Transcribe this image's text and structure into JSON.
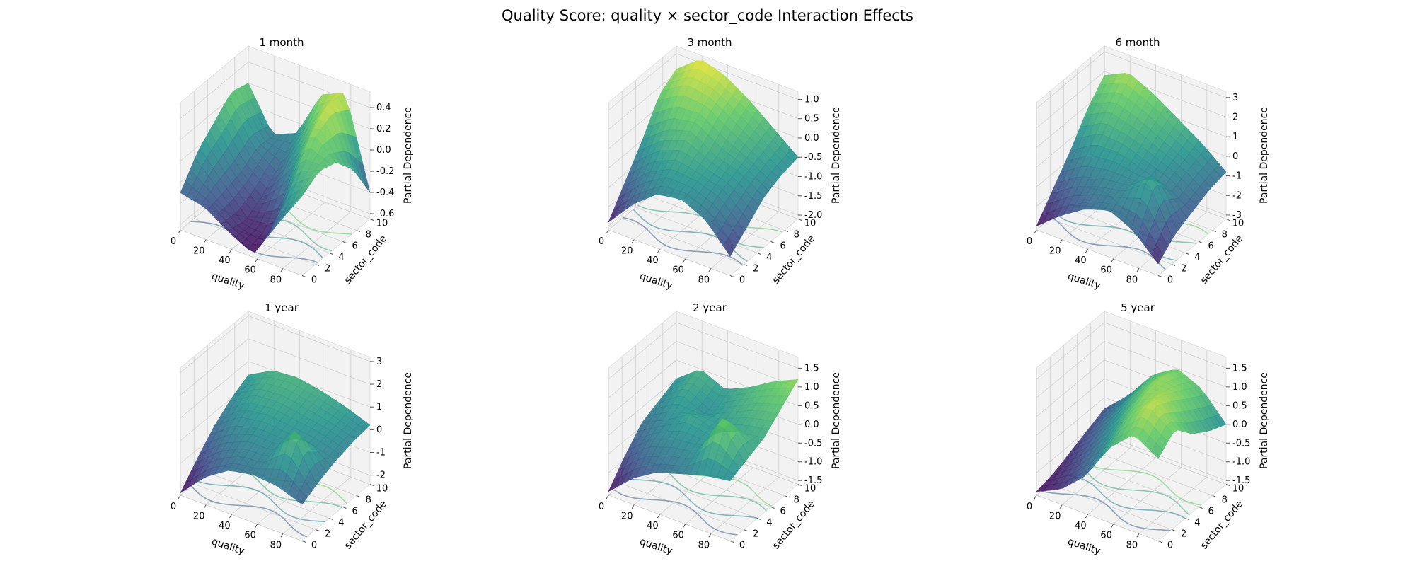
{
  "figure": {
    "title": "Quality Score: quality × sector_code Interaction Effects"
  },
  "chart_data": [
    {
      "type": "surface3d",
      "title": "1 month",
      "xlabel": "quality",
      "ylabel": "sector_code",
      "zlabel": "Partial Dependence",
      "xticks": [
        "0",
        "20",
        "40",
        "60",
        "80"
      ],
      "yticks": [
        "0",
        "2",
        "4",
        "6",
        "8",
        "10"
      ],
      "zticks": [
        "-0.6",
        "-0.4",
        "-0.2",
        "0.0",
        "0.2",
        "0.4"
      ],
      "xlim": [
        0,
        95
      ],
      "ylim": [
        0,
        10
      ],
      "zlim": [
        -0.65,
        0.55
      ],
      "grid": true,
      "colormap": "viridis",
      "contours_on_floor": true,
      "grid_x": [
        0,
        19,
        38,
        57,
        76,
        95
      ],
      "grid_y": [
        0,
        2.5,
        5,
        7.5,
        10
      ],
      "z": [
        [
          -0.3,
          -0.35,
          -0.5,
          -0.62,
          -0.25,
          0.1
        ],
        [
          -0.05,
          -0.3,
          -0.55,
          -0.55,
          0.05,
          0.2
        ],
        [
          0.1,
          -0.25,
          -0.45,
          -0.2,
          0.35,
          0.15
        ],
        [
          0.25,
          -0.15,
          -0.3,
          0.1,
          0.5,
          -0.05
        ],
        [
          0.2,
          -0.2,
          -0.1,
          0.35,
          0.45,
          -0.4
        ]
      ]
    },
    {
      "type": "surface3d",
      "title": "3 month",
      "xlabel": "quality",
      "ylabel": "sector_code",
      "zlabel": "Partial Dependence",
      "xticks": [
        "0",
        "20",
        "40",
        "60",
        "80"
      ],
      "yticks": [
        "0",
        "2",
        "4",
        "6",
        "8",
        "10"
      ],
      "zticks": [
        "-2.0",
        "-1.5",
        "-1.0",
        "-0.5",
        "0.0",
        "0.5",
        "1.0"
      ],
      "xlim": [
        0,
        95
      ],
      "ylim": [
        0,
        10
      ],
      "zlim": [
        -2.1,
        1.2
      ],
      "grid": true,
      "colormap": "viridis",
      "contours_on_floor": true,
      "grid_x": [
        0,
        19,
        38,
        57,
        76,
        95
      ],
      "grid_y": [
        0,
        2.5,
        5,
        7.5,
        10
      ],
      "z": [
        [
          -1.9,
          -1.2,
          -0.7,
          -0.6,
          -0.9,
          -1.6
        ],
        [
          -1.2,
          -0.6,
          -0.3,
          -0.4,
          -0.6,
          -1.2
        ],
        [
          -0.5,
          0.0,
          0.2,
          -0.2,
          -0.4,
          -0.8
        ],
        [
          0.3,
          0.7,
          0.6,
          0.2,
          -0.2,
          -0.6
        ],
        [
          0.6,
          1.1,
          0.9,
          0.5,
          0.0,
          -0.5
        ]
      ]
    },
    {
      "type": "surface3d",
      "title": "6 month",
      "xlabel": "quality",
      "ylabel": "sector_code",
      "zlabel": "Partial Dependence",
      "xticks": [
        "0",
        "20",
        "40",
        "60",
        "80"
      ],
      "yticks": [
        "0",
        "2",
        "4",
        "6",
        "8",
        "10"
      ],
      "zticks": [
        "-3",
        "-2",
        "-1",
        "0",
        "1",
        "2",
        "3"
      ],
      "xlim": [
        0,
        95
      ],
      "ylim": [
        0,
        10
      ],
      "zlim": [
        -3.2,
        3.3
      ],
      "grid": true,
      "colormap": "viridis",
      "contours_on_floor": true,
      "grid_x": [
        0,
        19,
        38,
        57,
        76,
        95
      ],
      "grid_y": [
        0,
        2.5,
        5,
        7.5,
        10
      ],
      "z": [
        [
          -3.0,
          -2.0,
          -1.2,
          -0.8,
          -1.4,
          -2.6
        ],
        [
          -1.8,
          -1.0,
          -0.6,
          -0.4,
          0.8,
          -1.8
        ],
        [
          -0.6,
          0.2,
          0.2,
          -0.2,
          -0.6,
          -1.4
        ],
        [
          0.8,
          1.4,
          1.0,
          0.4,
          -0.2,
          -1.0
        ],
        [
          1.8,
          2.4,
          1.8,
          1.0,
          0.2,
          -0.8
        ]
      ]
    },
    {
      "type": "surface3d",
      "title": "1 year",
      "xlabel": "quality",
      "ylabel": "sector_code",
      "zlabel": "Partial Dependence",
      "xticks": [
        "0",
        "20",
        "40",
        "60",
        "80"
      ],
      "yticks": [
        "0",
        "2",
        "4",
        "6",
        "8",
        "10"
      ],
      "zticks": [
        "-2",
        "-1",
        "0",
        "1",
        "2",
        "3"
      ],
      "xlim": [
        0,
        95
      ],
      "ylim": [
        0,
        10
      ],
      "zlim": [
        -2.4,
        3.2
      ],
      "grid": true,
      "colormap": "viridis",
      "contours_on_floor": true,
      "grid_x": [
        0,
        19,
        38,
        57,
        76,
        95
      ],
      "grid_y": [
        0,
        2.5,
        5,
        7.5,
        10
      ],
      "z": [
        [
          -2.3,
          -1.2,
          -0.5,
          -0.3,
          -0.4,
          -0.8
        ],
        [
          -1.4,
          -0.5,
          0.0,
          0.0,
          1.6,
          -0.4
        ],
        [
          -0.6,
          0.2,
          0.4,
          0.3,
          0.2,
          -0.1
        ],
        [
          0.0,
          0.7,
          0.8,
          0.6,
          0.4,
          0.1
        ],
        [
          0.4,
          1.0,
          1.1,
          0.9,
          0.6,
          0.2
        ]
      ]
    },
    {
      "type": "surface3d",
      "title": "2 year",
      "xlabel": "quality",
      "ylabel": "sector_code",
      "zlabel": "Partial Dependence",
      "xticks": [
        "0",
        "20",
        "40",
        "60",
        "80"
      ],
      "yticks": [
        "0",
        "2",
        "4",
        "6",
        "8",
        "10"
      ],
      "zticks": [
        "-1.5",
        "-1.0",
        "-0.5",
        "0.0",
        "0.5",
        "1.0",
        "1.5"
      ],
      "xlim": [
        0,
        95
      ],
      "ylim": [
        0,
        10
      ],
      "zlim": [
        -1.6,
        1.8
      ],
      "grid": true,
      "colormap": "viridis",
      "contours_on_floor": true,
      "grid_x": [
        0,
        19,
        38,
        57,
        76,
        95
      ],
      "grid_y": [
        0,
        2.5,
        5,
        7.5,
        10
      ],
      "z": [
        [
          -1.5,
          -0.9,
          -0.5,
          -0.3,
          -0.1,
          0.0
        ],
        [
          -0.9,
          -0.3,
          -0.1,
          0.0,
          1.2,
          0.2
        ],
        [
          -0.4,
          -0.1,
          0.3,
          0.1,
          0.3,
          0.4
        ],
        [
          -0.2,
          0.3,
          -0.1,
          0.3,
          0.6,
          0.8
        ],
        [
          0.0,
          0.5,
          0.2,
          0.5,
          0.9,
          1.2
        ]
      ]
    },
    {
      "type": "surface3d",
      "title": "5 year",
      "xlabel": "quality",
      "ylabel": "sector_code",
      "zlabel": "Partial Dependence",
      "xticks": [
        "0",
        "20",
        "40",
        "60",
        "80"
      ],
      "yticks": [
        "0",
        "2",
        "4",
        "6",
        "8",
        "10"
      ],
      "zticks": [
        "-1.5",
        "-1.0",
        "-0.5",
        "0.0",
        "0.5",
        "1.0",
        "1.5"
      ],
      "xlim": [
        0,
        95
      ],
      "ylim": [
        0,
        10
      ],
      "zlim": [
        -1.6,
        1.8
      ],
      "grid": true,
      "colormap": "viridis",
      "contours_on_floor": true,
      "grid_x": [
        0,
        19,
        38,
        57,
        76,
        95
      ],
      "grid_y": [
        0,
        2.5,
        5,
        7.5,
        10
      ],
      "z": [
        [
          -1.5,
          -1.2,
          -0.6,
          0.4,
          1.0,
          0.6
        ],
        [
          -1.4,
          -0.9,
          -0.2,
          0.8,
          1.5,
          1.0
        ],
        [
          -1.2,
          -0.6,
          0.2,
          1.1,
          1.3,
          0.5
        ],
        [
          -1.0,
          -0.3,
          0.5,
          1.2,
          1.0,
          0.2
        ],
        [
          -0.8,
          -0.2,
          0.6,
          1.0,
          0.7,
          0.0
        ]
      ]
    }
  ]
}
